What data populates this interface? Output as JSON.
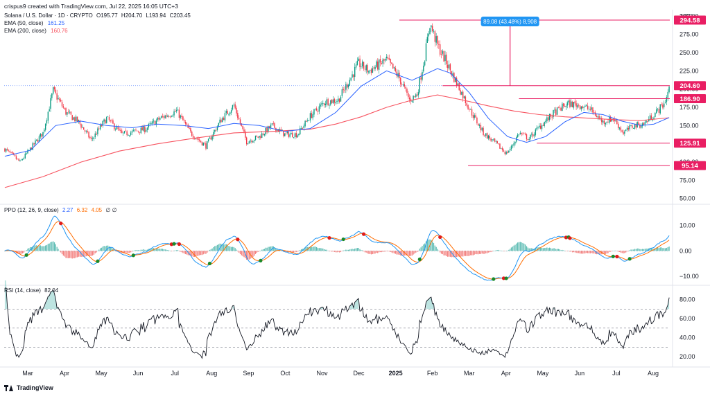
{
  "header": {
    "text": "crispus9 created with TradingView.com, Jul 22, 2025 16:05 UTC+3"
  },
  "symbol": {
    "name": "Solana / U.S. Dollar · 1D · CRYPTO",
    "ohlc": {
      "o": "O195.77",
      "h": "H204.70",
      "l": "L193.94",
      "c": "C203.45"
    },
    "ema50_label": "EMA (50, close)",
    "ema50_value": "161.25",
    "ema200_label": "EMA (200, close)",
    "ema200_value": "160.76"
  },
  "ppo": {
    "label": "PPO (12, 26, 9, close)",
    "v1": "2.27",
    "v2": "6.32",
    "v3": "4.05",
    "extra": "∅ ∅"
  },
  "rsi": {
    "label": "RSI (14, close)",
    "value": "82.04"
  },
  "branding": {
    "logo_text": "TradingView"
  },
  "colors": {
    "up": "#089981",
    "down": "#f23645",
    "ema50": "#2962ff",
    "ema200": "#f7525f",
    "accent": "#e91e63",
    "measure": "#2196f3",
    "ppo_line": "#2196f3",
    "ppo_signal": "#ff6d00",
    "rsi_line": "#131722"
  },
  "chart_data": [
    {
      "type": "candlestick",
      "currency_label": "USD",
      "y_ticks": [
        "300.00",
        "275.00",
        "250.00",
        "225.00",
        "200.00",
        "175.00",
        "150.00",
        "125.00",
        "100.00",
        "75.00",
        "50.00"
      ],
      "ylim": [
        45,
        305
      ],
      "x_labels": [
        "Mar",
        "Apr",
        "May",
        "Jun",
        "Jul",
        "Aug",
        "Sep",
        "Oct",
        "Nov",
        "Dec",
        "2025",
        "Feb",
        "Mar",
        "Apr",
        "May",
        "Jun",
        "Jul",
        "Aug"
      ],
      "price_tags": [
        "294.58",
        "204.60",
        "186.90",
        "125.91",
        "95.14"
      ],
      "measure_label": "89.08 (43.48%) 8,908",
      "anchors": [
        {
          "x": 0,
          "y": 118
        },
        {
          "x": 12,
          "y": 100
        },
        {
          "x": 30,
          "y": 140
        },
        {
          "x": 38,
          "y": 198
        },
        {
          "x": 48,
          "y": 168
        },
        {
          "x": 58,
          "y": 155
        },
        {
          "x": 68,
          "y": 130
        },
        {
          "x": 80,
          "y": 160
        },
        {
          "x": 92,
          "y": 138
        },
        {
          "x": 110,
          "y": 145
        },
        {
          "x": 122,
          "y": 160
        },
        {
          "x": 135,
          "y": 170
        },
        {
          "x": 146,
          "y": 140
        },
        {
          "x": 158,
          "y": 122
        },
        {
          "x": 170,
          "y": 158
        },
        {
          "x": 180,
          "y": 178
        },
        {
          "x": 190,
          "y": 128
        },
        {
          "x": 200,
          "y": 135
        },
        {
          "x": 210,
          "y": 150
        },
        {
          "x": 220,
          "y": 138
        },
        {
          "x": 230,
          "y": 138
        },
        {
          "x": 240,
          "y": 163
        },
        {
          "x": 252,
          "y": 183
        },
        {
          "x": 262,
          "y": 185
        },
        {
          "x": 278,
          "y": 235
        },
        {
          "x": 286,
          "y": 225
        },
        {
          "x": 300,
          "y": 240
        },
        {
          "x": 310,
          "y": 215
        },
        {
          "x": 318,
          "y": 185
        },
        {
          "x": 324,
          "y": 193
        },
        {
          "x": 330,
          "y": 245
        },
        {
          "x": 334,
          "y": 290
        },
        {
          "x": 340,
          "y": 260
        },
        {
          "x": 346,
          "y": 240
        },
        {
          "x": 356,
          "y": 205
        },
        {
          "x": 366,
          "y": 170
        },
        {
          "x": 376,
          "y": 140
        },
        {
          "x": 386,
          "y": 125
        },
        {
          "x": 394,
          "y": 112
        },
        {
          "x": 398,
          "y": 120
        },
        {
          "x": 404,
          "y": 140
        },
        {
          "x": 412,
          "y": 132
        },
        {
          "x": 420,
          "y": 148
        },
        {
          "x": 432,
          "y": 168
        },
        {
          "x": 442,
          "y": 180
        },
        {
          "x": 452,
          "y": 178
        },
        {
          "x": 460,
          "y": 172
        },
        {
          "x": 470,
          "y": 155
        },
        {
          "x": 478,
          "y": 160
        },
        {
          "x": 486,
          "y": 140
        },
        {
          "x": 494,
          "y": 150
        },
        {
          "x": 502,
          "y": 152
        },
        {
          "x": 510,
          "y": 165
        },
        {
          "x": 518,
          "y": 180
        },
        {
          "x": 522,
          "y": 200
        }
      ],
      "ema50_points": [
        {
          "x": 0,
          "y": 108
        },
        {
          "x": 20,
          "y": 116
        },
        {
          "x": 40,
          "y": 150
        },
        {
          "x": 60,
          "y": 156
        },
        {
          "x": 80,
          "y": 150
        },
        {
          "x": 100,
          "y": 147
        },
        {
          "x": 120,
          "y": 152
        },
        {
          "x": 140,
          "y": 150
        },
        {
          "x": 160,
          "y": 146
        },
        {
          "x": 180,
          "y": 153
        },
        {
          "x": 200,
          "y": 150
        },
        {
          "x": 220,
          "y": 142
        },
        {
          "x": 240,
          "y": 146
        },
        {
          "x": 260,
          "y": 168
        },
        {
          "x": 280,
          "y": 204
        },
        {
          "x": 300,
          "y": 225
        },
        {
          "x": 320,
          "y": 212
        },
        {
          "x": 340,
          "y": 228
        },
        {
          "x": 350,
          "y": 222
        },
        {
          "x": 365,
          "y": 195
        },
        {
          "x": 380,
          "y": 160
        },
        {
          "x": 395,
          "y": 135
        },
        {
          "x": 410,
          "y": 127
        },
        {
          "x": 425,
          "y": 135
        },
        {
          "x": 440,
          "y": 155
        },
        {
          "x": 455,
          "y": 168
        },
        {
          "x": 470,
          "y": 165
        },
        {
          "x": 485,
          "y": 156
        },
        {
          "x": 500,
          "y": 150
        },
        {
          "x": 510,
          "y": 152
        },
        {
          "x": 522,
          "y": 161
        }
      ],
      "ema200_points": [
        {
          "x": 0,
          "y": 65
        },
        {
          "x": 30,
          "y": 80
        },
        {
          "x": 60,
          "y": 100
        },
        {
          "x": 90,
          "y": 115
        },
        {
          "x": 120,
          "y": 125
        },
        {
          "x": 150,
          "y": 133
        },
        {
          "x": 180,
          "y": 140
        },
        {
          "x": 210,
          "y": 142
        },
        {
          "x": 240,
          "y": 145
        },
        {
          "x": 260,
          "y": 152
        },
        {
          "x": 280,
          "y": 162
        },
        {
          "x": 300,
          "y": 175
        },
        {
          "x": 320,
          "y": 185
        },
        {
          "x": 340,
          "y": 192
        },
        {
          "x": 360,
          "y": 185
        },
        {
          "x": 380,
          "y": 177
        },
        {
          "x": 400,
          "y": 170
        },
        {
          "x": 420,
          "y": 165
        },
        {
          "x": 440,
          "y": 162
        },
        {
          "x": 460,
          "y": 160
        },
        {
          "x": 480,
          "y": 158
        },
        {
          "x": 500,
          "y": 157
        },
        {
          "x": 522,
          "y": 160.76
        }
      ]
    },
    {
      "type": "ppo",
      "y_ticks": [
        "10.00",
        "0.00",
        "−10.00"
      ],
      "ylim": [
        -13,
        17
      ]
    },
    {
      "type": "rsi",
      "y_ticks": [
        "80.00",
        "60.00",
        "40.00",
        "20.00"
      ],
      "ylim": [
        15,
        92
      ],
      "levels": [
        70,
        50,
        30
      ]
    }
  ]
}
